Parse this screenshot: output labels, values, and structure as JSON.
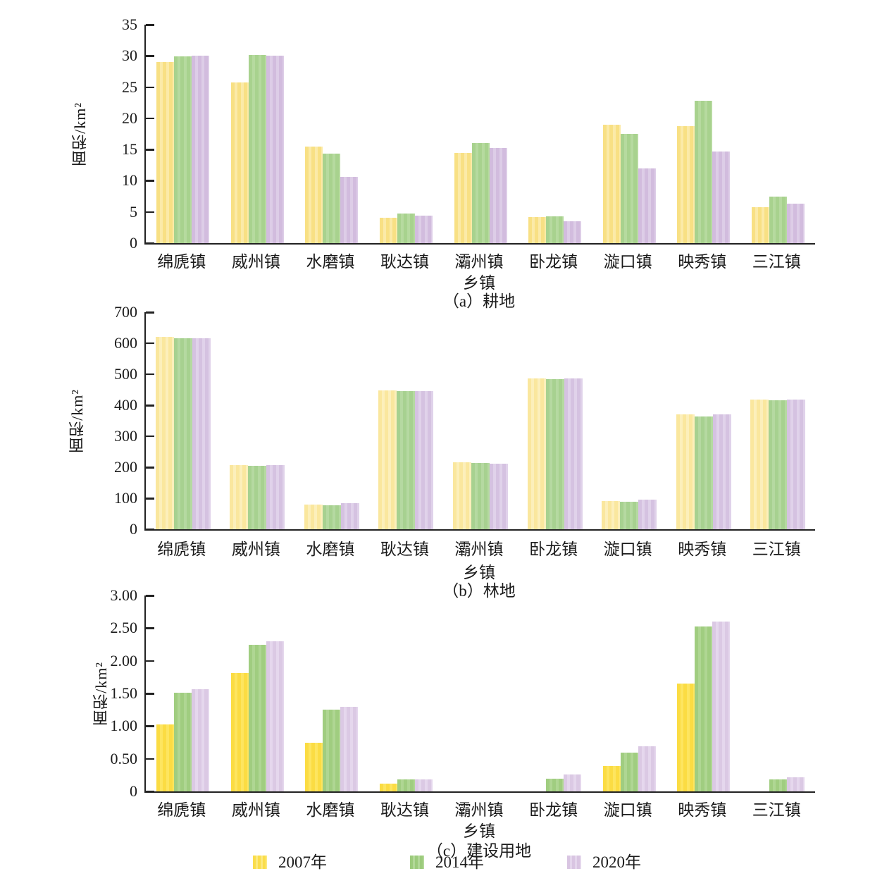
{
  "figure": {
    "background": "#ffffff",
    "text_color": "#1b1b1b",
    "axis_color": "#222222"
  },
  "legend": {
    "items": [
      {
        "label": "2007年",
        "color": "#FADD4B",
        "stripe": "#FCE97E"
      },
      {
        "label": "2014年",
        "color": "#9CCB7C",
        "stripe": "#B2D898"
      },
      {
        "label": "2020年",
        "color": "#D9C5E2",
        "stripe": "#E4D6EC"
      }
    ]
  },
  "chart_data": [
    {
      "type": "bar",
      "title": "（a）耕地",
      "xlabel": "乡镇",
      "ylabel": "面积/km²",
      "ylim": [
        0,
        35
      ],
      "grid": false,
      "ytick_labels": [
        "35",
        "30",
        "25",
        "20",
        "15",
        "10",
        "5",
        "0"
      ],
      "categories": [
        "绵虒镇",
        "威州镇",
        "水磨镇",
        "耿达镇",
        "灞州镇",
        "卧龙镇",
        "漩口镇",
        "映秀镇",
        "三江镇"
      ],
      "series": [
        {
          "name": "2007年",
          "color": "#F8E084",
          "stripe": "#FBEAA8",
          "values": [
            29.0,
            25.8,
            15.5,
            4.1,
            14.5,
            4.2,
            19.0,
            18.8,
            5.8
          ]
        },
        {
          "name": "2014年",
          "color": "#A8D28E",
          "stripe": "#B6DA9F",
          "values": [
            29.9,
            30.2,
            14.3,
            4.8,
            16.0,
            4.3,
            17.5,
            22.8,
            7.5
          ]
        },
        {
          "name": "2020年",
          "color": "#D2BCDE",
          "stripe": "#DDCDE7",
          "values": [
            30.0,
            30.0,
            10.6,
            4.4,
            15.2,
            3.5,
            12.0,
            14.7,
            6.3
          ]
        }
      ]
    },
    {
      "type": "bar",
      "title": "（b）林地",
      "xlabel": "乡镇",
      "ylabel": "面积/km²",
      "ylim": [
        0,
        700
      ],
      "grid": false,
      "ytick_labels": [
        "700",
        "600",
        "500",
        "400",
        "300",
        "200",
        "100",
        "0"
      ],
      "categories": [
        "绵虒镇",
        "威州镇",
        "水磨镇",
        "耿达镇",
        "灞州镇",
        "卧龙镇",
        "漩口镇",
        "映秀镇",
        "三江镇"
      ],
      "series": [
        {
          "name": "2007年",
          "color": "#FAE79E",
          "stripe": "#FCEFBB",
          "values": [
            620,
            207,
            79,
            448,
            215,
            486,
            90,
            370,
            418
          ]
        },
        {
          "name": "2014年",
          "color": "#A7D190",
          "stripe": "#B5D9A1",
          "values": [
            617,
            204,
            78,
            446,
            213,
            485,
            88,
            363,
            416
          ]
        },
        {
          "name": "2020年",
          "color": "#D5C2E1",
          "stripe": "#E0D2EA",
          "values": [
            617,
            207,
            85,
            446,
            212,
            487,
            95,
            371,
            418
          ]
        }
      ]
    },
    {
      "type": "bar",
      "title": "（c）建设用地",
      "xlabel": "乡镇",
      "ylabel": "面积/km²",
      "ylim": [
        0,
        3
      ],
      "grid": false,
      "ytick_labels": [
        "3.00",
        "2.50",
        "2.00",
        "1.50",
        "1.00",
        "0.50",
        "0"
      ],
      "categories": [
        "绵虒镇",
        "威州镇",
        "水磨镇",
        "耿达镇",
        "灞州镇",
        "卧龙镇",
        "漩口镇",
        "映秀镇",
        "三江镇"
      ],
      "series": [
        {
          "name": "2007年",
          "color": "#FBDC43",
          "stripe": "#FDE560",
          "values": [
            1.02,
            1.81,
            0.75,
            0.12,
            0,
            0,
            0.39,
            1.65,
            0
          ]
        },
        {
          "name": "2014年",
          "color": "#A0CD80",
          "stripe": "#AFD693",
          "values": [
            1.51,
            2.25,
            1.25,
            0.18,
            0,
            0.19,
            0.59,
            2.52,
            0.18
          ]
        },
        {
          "name": "2020年",
          "color": "#DBC9E4",
          "stripe": "#E5D7ED",
          "values": [
            1.56,
            2.3,
            1.3,
            0.18,
            0,
            0.26,
            0.69,
            2.6,
            0.22
          ]
        }
      ]
    }
  ]
}
